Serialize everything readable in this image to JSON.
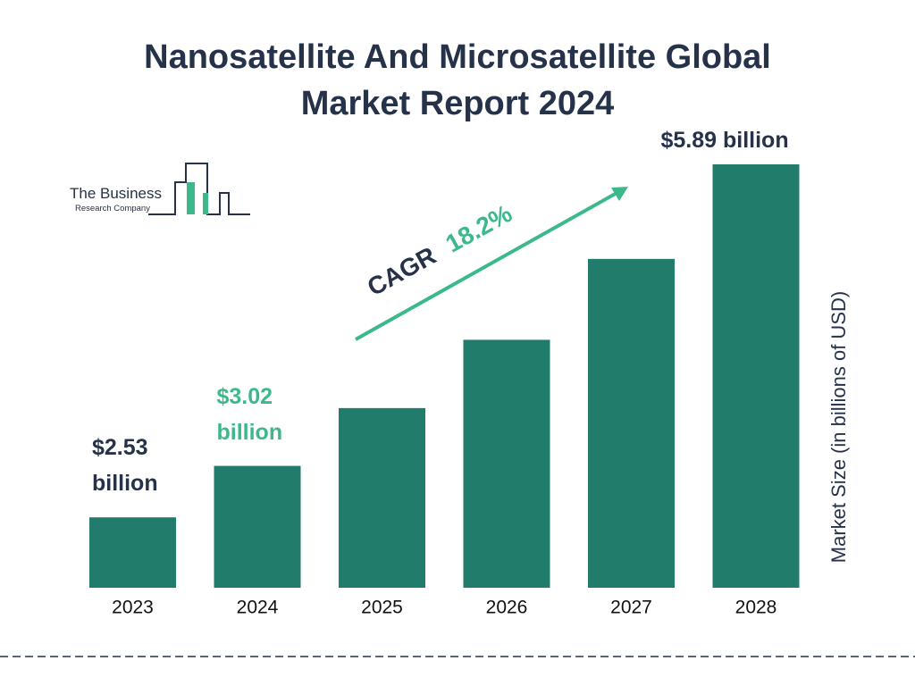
{
  "chart_data": {
    "type": "bar",
    "title": "Nanosatellite And Microsatellite Global Market Report 2024",
    "logo": {
      "line1": "The Business",
      "line2": "Research Company"
    },
    "y_label": "Market Size (in billions of USD)",
    "categories": [
      "2023",
      "2024",
      "2025",
      "2026",
      "2027",
      "2028"
    ],
    "values": [
      2.53,
      3.02,
      3.57,
      4.22,
      4.99,
      5.89
    ],
    "value_labels": [
      "$2.53 billion",
      "$3.02 billion",
      null,
      null,
      null,
      "$5.89 billion"
    ],
    "value_label_colors": [
      "#25324a",
      "#3cb98a",
      null,
      null,
      null,
      "#25324a"
    ],
    "color": "#217c6c",
    "ylim": [
      1.86,
      5.89
    ],
    "annotation": {
      "label": "CAGR",
      "value": "18.2%",
      "label_color": "#25324a",
      "value_color": "#3cb98a"
    }
  }
}
